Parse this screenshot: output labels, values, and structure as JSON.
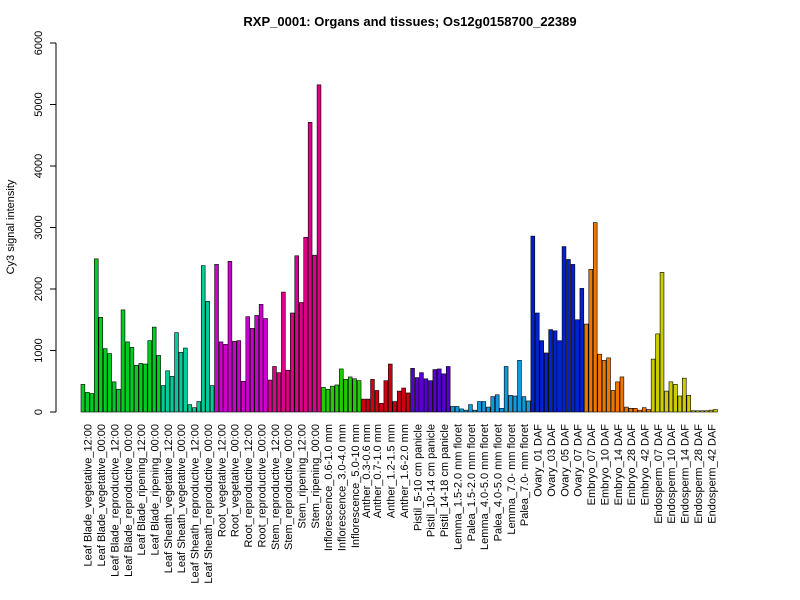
{
  "chart_data": {
    "type": "bar",
    "title": "RXP_0001: Organs and tissues; Os12g0158700_22389",
    "ylabel": "Cy3 signal intensity",
    "xlabel": "",
    "ylim": [
      0,
      6000
    ],
    "yticks": [
      0,
      1000,
      2000,
      3000,
      4000,
      5000,
      6000
    ],
    "grid": false,
    "x_tick_labels": [
      "Leaf Blade_vegetative_12:00",
      "Leaf Blade_vegetative_00:00",
      "Leaf Blade_reproductive_12:00",
      "Leaf Blade_reproductive_00:00",
      "Leaf Blade_ripening_12:00",
      "Leaf Blade_ripening_00:00",
      "Leaf Sheath_vegetative_12:00",
      "Leaf Sheath_vegetative_00:00",
      "Leaf Sheath_reproductive_12:00",
      "Leaf Sheath_reproductive_00:00",
      "Root_vegetative_12:00",
      "Root_vegetative_00:00",
      "Root_reproductive_12:00",
      "Root_reproductive_00:00",
      "Stem_reproductive_12:00",
      "Stem_reproductive_00:00",
      "Stem_ripening_12:00",
      "Stem_ripening_00:00",
      "Inflorescence_0.6-1.0 mm",
      "Inflorescence_3.0-4.0 mm",
      "Inflorescence_5.0-10 mm",
      "Anther_0.3-0.6 mm",
      "Anther_0.7-1.0 mm",
      "Anther_1.2-1.5 mm",
      "Anther_1.6-2.0 mm",
      "Pistil_5-10 cm panicle",
      "Pistil_10-14 cm panicle",
      "Pistil_14-18 cm panicle",
      "Lemma_1.5-2.0 mm floret",
      "Palea_1.5-2.0 mm floret",
      "Lemma_4.0-5.0 mm floret",
      "Palea_4.0-5.0 mm floret",
      "Lemma_7.0- mm floret",
      "Palea_7.0- mm floret",
      "Ovary_01 DAF",
      "Ovary_03 DAF",
      "Ovary_05 DAF",
      "Ovary_07 DAF",
      "Embryo_07 DAF",
      "Embryo_10 DAF",
      "Embryo_14 DAF",
      "Embryo_28 DAF",
      "Embryo_42 DAF",
      "Endosperm_07 DAF",
      "Endosperm_10 DAF",
      "Endosperm_14 DAF",
      "Endosperm_28 DAF",
      "Endosperm_42 DAF"
    ],
    "groups": [
      {
        "color": "#00cc22",
        "values": [
          450,
          320,
          300
        ]
      },
      {
        "color": "#00cc22",
        "values": [
          2490,
          1540,
          1030
        ]
      },
      {
        "color": "#00cc22",
        "values": [
          950,
          490,
          370
        ]
      },
      {
        "color": "#00cc22",
        "values": [
          1660,
          1140,
          1050
        ]
      },
      {
        "color": "#00cc22",
        "values": [
          760,
          790,
          780
        ]
      },
      {
        "color": "#00cc22",
        "values": [
          1160,
          1380,
          920
        ]
      },
      {
        "color": "#00cc99",
        "values": [
          430,
          670,
          580
        ]
      },
      {
        "color": "#00cc99",
        "values": [
          1290,
          970,
          1040
        ]
      },
      {
        "color": "#00cc99",
        "values": [
          120,
          70,
          170
        ]
      },
      {
        "color": "#00cc99",
        "values": [
          2380,
          1800,
          430
        ]
      },
      {
        "color": "#cc00cc",
        "values": [
          2400,
          1140,
          1100
        ]
      },
      {
        "color": "#cc00cc",
        "values": [
          2450,
          1150,
          1160
        ]
      },
      {
        "color": "#cc00cc",
        "values": [
          500,
          1550,
          1360
        ]
      },
      {
        "color": "#cc00cc",
        "values": [
          1570,
          1750,
          1520
        ]
      },
      {
        "color": "#dd0088",
        "values": [
          520,
          740,
          640
        ]
      },
      {
        "color": "#dd0088",
        "values": [
          1950,
          680,
          1610
        ]
      },
      {
        "color": "#dd0088",
        "values": [
          2540,
          1780,
          2840
        ]
      },
      {
        "color": "#dd0088",
        "values": [
          4710,
          2550,
          5320
        ]
      },
      {
        "color": "#22cc00",
        "values": [
          400,
          370,
          420
        ]
      },
      {
        "color": "#22cc00",
        "values": [
          440,
          700,
          530
        ]
      },
      {
        "color": "#22cc00",
        "values": [
          570,
          540,
          510
        ]
      },
      {
        "color": "#cc0011",
        "values": [
          210,
          210
        ]
      },
      {
        "color": "#cc0011",
        "values": [
          530,
          350,
          140
        ]
      },
      {
        "color": "#cc0011",
        "values": [
          510,
          780,
          170
        ]
      },
      {
        "color": "#cc0011",
        "values": [
          340,
          390,
          310
        ]
      },
      {
        "color": "#5500cc",
        "values": [
          710,
          560,
          640
        ]
      },
      {
        "color": "#5500cc",
        "values": [
          540,
          510,
          690
        ]
      },
      {
        "color": "#5500cc",
        "values": [
          700,
          620,
          740
        ]
      },
      {
        "color": "#1199dd",
        "values": [
          90,
          90,
          50
        ]
      },
      {
        "color": "#1199dd",
        "values": [
          30,
          120,
          30
        ]
      },
      {
        "color": "#1199dd",
        "values": [
          170,
          170,
          80
        ]
      },
      {
        "color": "#1199dd",
        "values": [
          250,
          280,
          60
        ]
      },
      {
        "color": "#1199dd",
        "values": [
          740,
          270,
          260
        ]
      },
      {
        "color": "#1199dd",
        "values": [
          840,
          250,
          180
        ]
      },
      {
        "color": "#0022cc",
        "values": [
          2860,
          1610,
          1160
        ]
      },
      {
        "color": "#0022cc",
        "values": [
          960,
          1340,
          1320
        ]
      },
      {
        "color": "#0022cc",
        "values": [
          1160,
          2690,
          2480
        ]
      },
      {
        "color": "#0022cc",
        "values": [
          2400,
          1500,
          2010
        ]
      },
      {
        "color": "#ee7700",
        "values": [
          1430,
          2320,
          3080
        ]
      },
      {
        "color": "#ee7700",
        "values": [
          940,
          840,
          880
        ]
      },
      {
        "color": "#ee7700",
        "values": [
          350,
          490,
          570
        ]
      },
      {
        "color": "#ee7700",
        "values": [
          80,
          60,
          60
        ]
      },
      {
        "color": "#ee7700",
        "values": [
          30,
          70,
          40
        ]
      },
      {
        "color": "#cccc00",
        "values": [
          860,
          1270,
          2270
        ]
      },
      {
        "color": "#cccc00",
        "values": [
          340,
          490,
          450
        ]
      },
      {
        "color": "#cccc00",
        "values": [
          260,
          550,
          270
        ]
      },
      {
        "color": "#cccc00",
        "values": [
          20,
          20,
          20
        ]
      },
      {
        "color": "#cccc00",
        "values": [
          20,
          30,
          40
        ]
      }
    ]
  }
}
